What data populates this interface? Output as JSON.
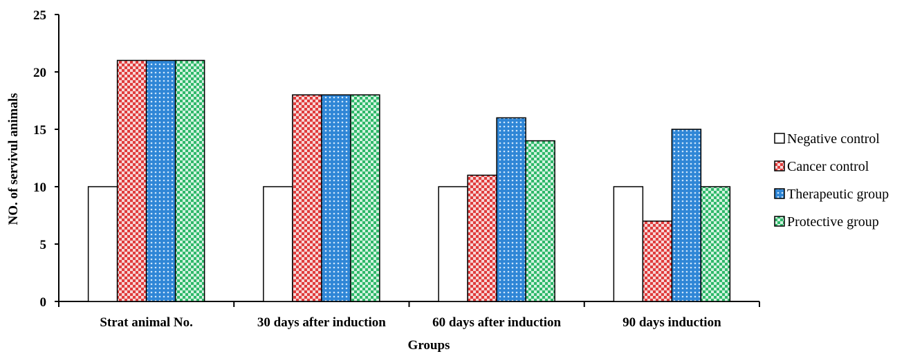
{
  "chart_data": {
    "type": "bar",
    "xlabel": "Groups",
    "ylabel": "NO. of servivul animals",
    "ylim": [
      0,
      25
    ],
    "yticks": [
      "0",
      "5",
      "10",
      "15",
      "20",
      "25"
    ],
    "categories": [
      "Strat animal No.",
      "30 days after induction",
      "60 days after induction",
      "90 days induction"
    ],
    "legend_position": "right",
    "grid": false,
    "series": [
      {
        "name": "Negative control",
        "values": [
          10,
          10,
          10,
          10
        ],
        "color": "#ffffff",
        "pattern": "none"
      },
      {
        "name": "Cancer control",
        "values": [
          21,
          18,
          11,
          7
        ],
        "color": "#e03c3c",
        "pattern": "checker"
      },
      {
        "name": "Therapeutic group",
        "values": [
          21,
          18,
          16,
          15
        ],
        "color": "#2f86d6",
        "pattern": "dots"
      },
      {
        "name": "Protective group",
        "values": [
          21,
          18,
          14,
          10
        ],
        "color": "#2fb86a",
        "pattern": "checker"
      }
    ]
  }
}
